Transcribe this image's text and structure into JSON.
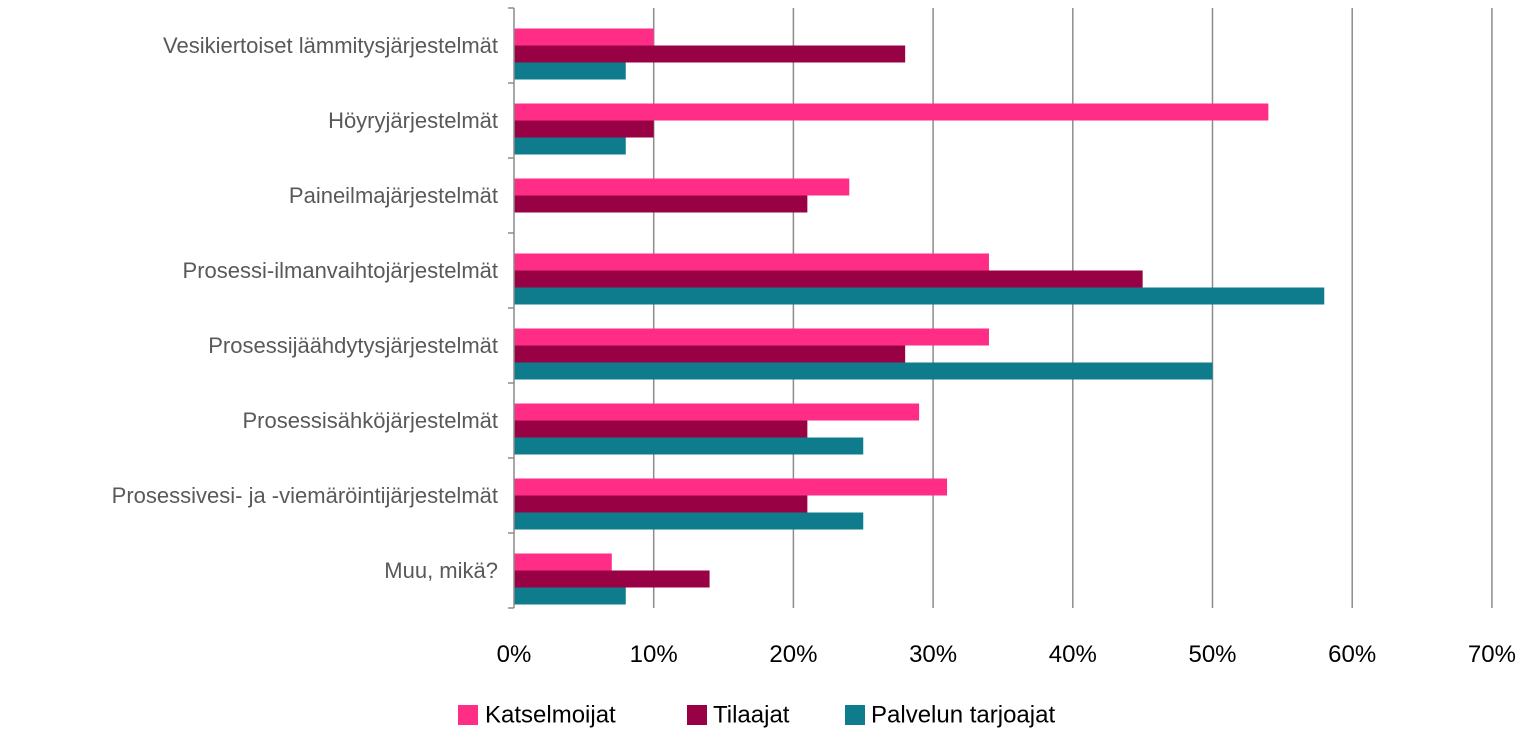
{
  "chart_data": {
    "type": "bar",
    "orientation": "horizontal",
    "categories": [
      "Vesikiertoiset lämmitysjärjestelmät",
      "Höyryjärjestelmät",
      "Paineilmajärjestelmät",
      "Prosessi-ilmanvaihtojärjestelmät",
      "Prosessijäähdytysjärjestelmät",
      "Prosessisähköjärjestelmät",
      "Prosessivesi- ja -viemäröintijärjestelmät",
      "Muu, mikä?"
    ],
    "series": [
      {
        "name": "Katselmoijat",
        "color": "#FF2D86",
        "values": [
          10,
          54,
          24,
          34,
          34,
          29,
          31,
          7
        ]
      },
      {
        "name": "Tilaajat",
        "color": "#980244",
        "values": [
          28,
          10,
          21,
          45,
          28,
          21,
          21,
          14
        ]
      },
      {
        "name": "Palvelun tarjoajat",
        "color": "#0E7C8C",
        "values": [
          8,
          8,
          0,
          58,
          50,
          25,
          25,
          8
        ]
      }
    ],
    "xticks": [
      "0%",
      "10%",
      "20%",
      "30%",
      "40%",
      "50%",
      "60%",
      "70%"
    ],
    "xlim": [
      0,
      70
    ],
    "unit": "%",
    "grid": true,
    "legend_position": "bottom"
  }
}
